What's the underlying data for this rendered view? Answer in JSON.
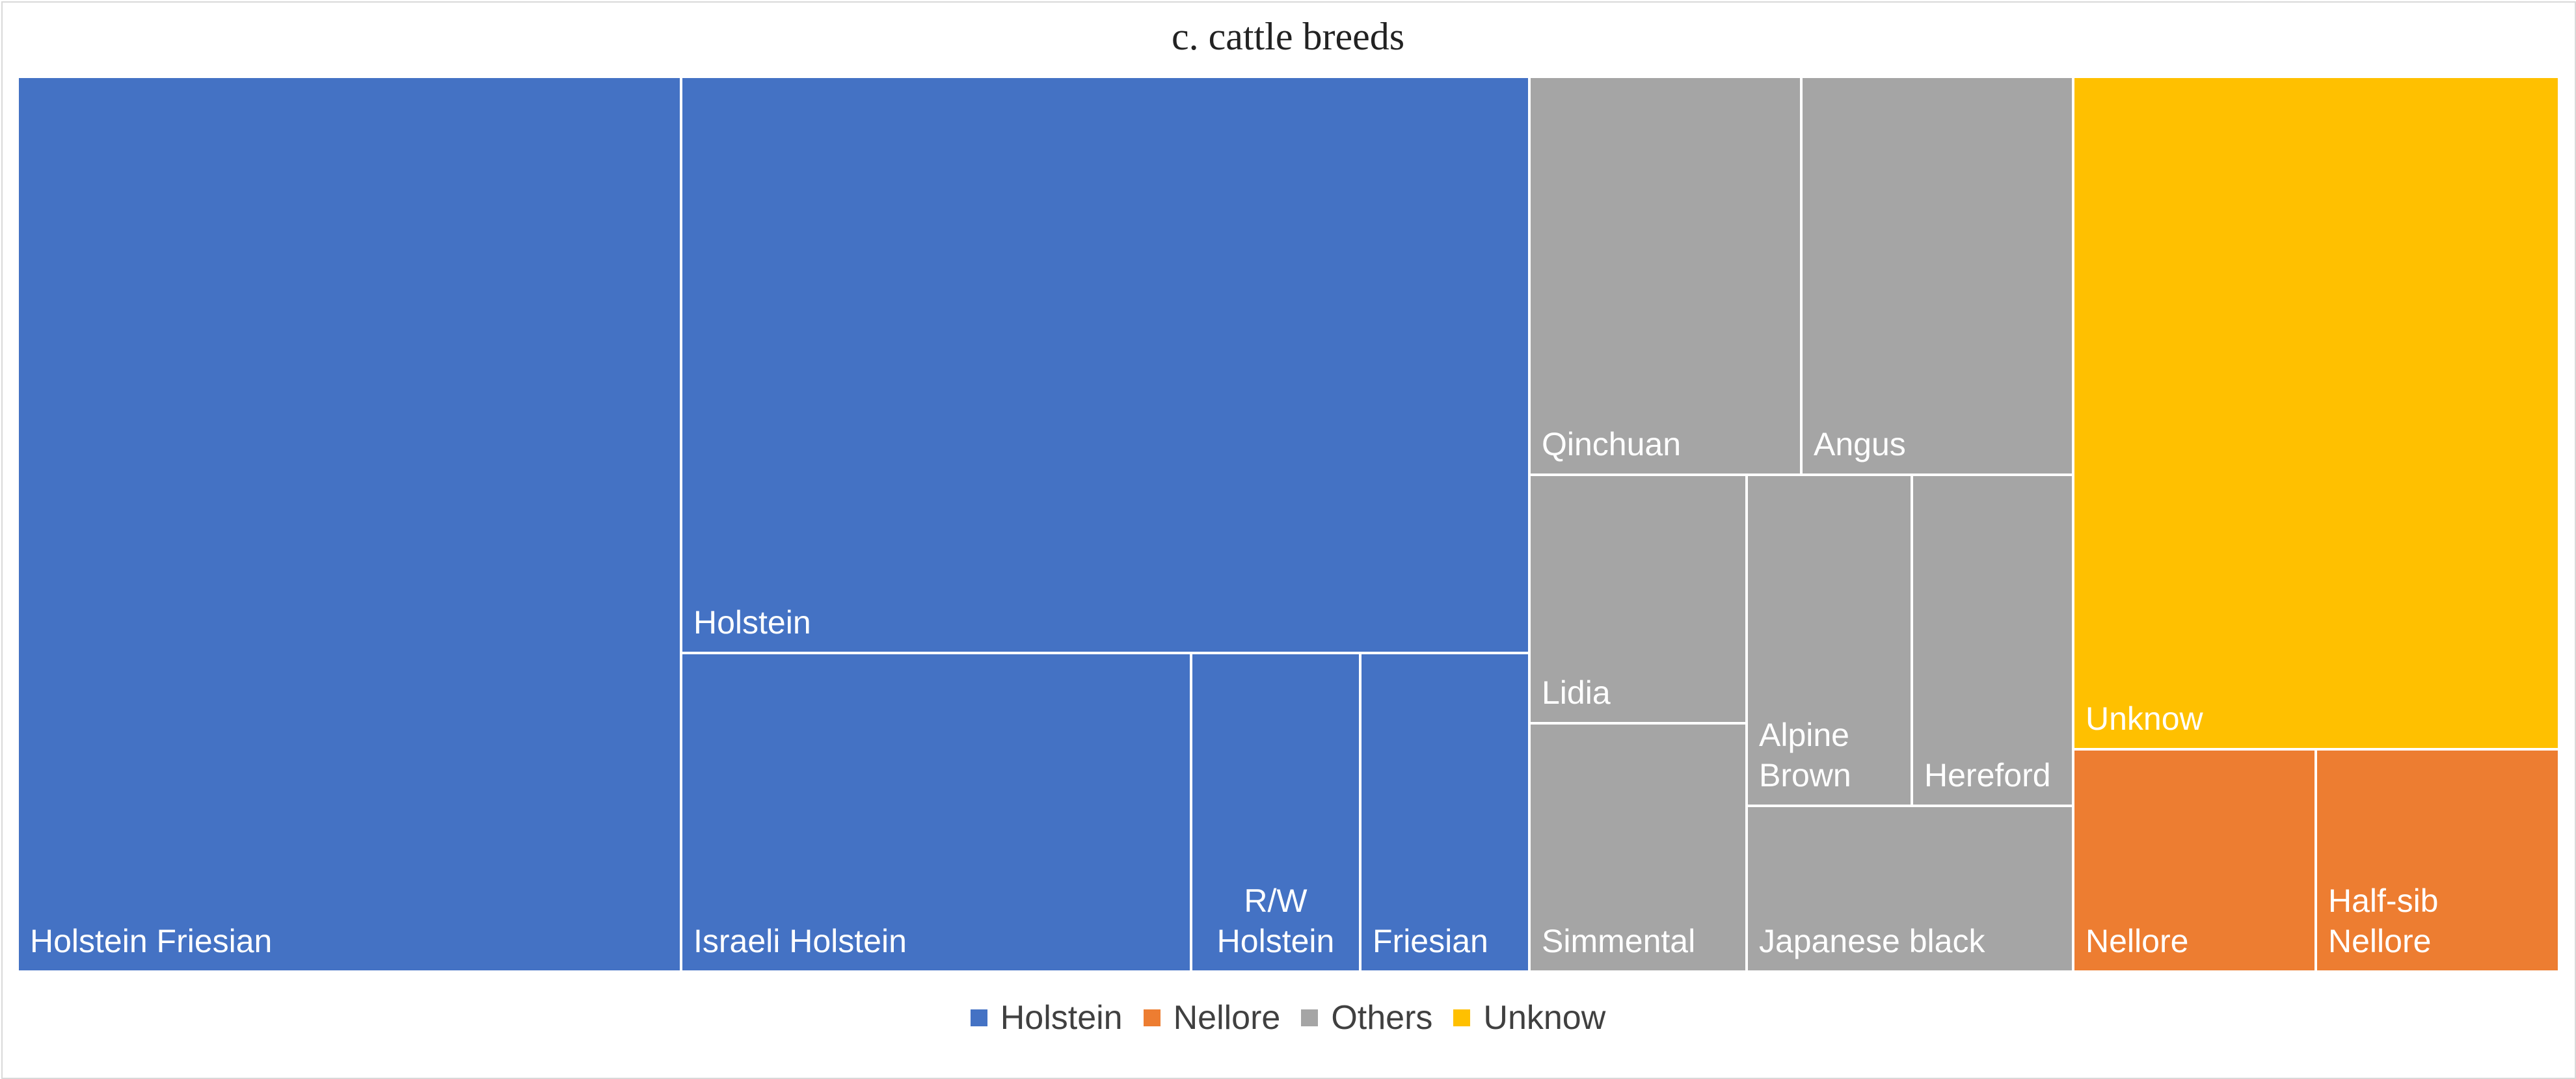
{
  "chart_data": {
    "type": "treemap",
    "title": "c. cattle breeds",
    "colors": {
      "Holstein": "#4472c4",
      "Nellore": "#ed7d31",
      "Others": "#a5a5a5",
      "Unknow": "#ffc000"
    },
    "legend": [
      "Holstein",
      "Nellore",
      "Others",
      "Unknow"
    ],
    "groups": [
      {
        "name": "Holstein",
        "items": [
          {
            "label": "Holstein Friesian",
            "value": 13.2
          },
          {
            "label": "Holstein",
            "value": 10.8
          },
          {
            "label": "Israeli Holstein",
            "value": 4.9
          },
          {
            "label": "R/W Holstein",
            "value": 1.6
          },
          {
            "label": "Friesian",
            "value": 1.6
          }
        ]
      },
      {
        "name": "Others",
        "items": [
          {
            "label": "Qinchuan",
            "value": 2.4
          },
          {
            "label": "Angus",
            "value": 2.4
          },
          {
            "label": "Lidia",
            "value": 1.2
          },
          {
            "label": "Simmental",
            "value": 1.2
          },
          {
            "label": "Alpine Brown",
            "value": 1.2
          },
          {
            "label": "Hereford",
            "value": 1.2
          },
          {
            "label": "Japanese black",
            "value": 1.2
          }
        ]
      },
      {
        "name": "Unknow",
        "items": [
          {
            "label": "Unknow",
            "value": 7.2
          }
        ]
      },
      {
        "name": "Nellore",
        "items": [
          {
            "label": "Nellore",
            "value": 1.5
          },
          {
            "label": "Half-sib Nellore",
            "value": 1.5
          }
        ]
      }
    ]
  }
}
